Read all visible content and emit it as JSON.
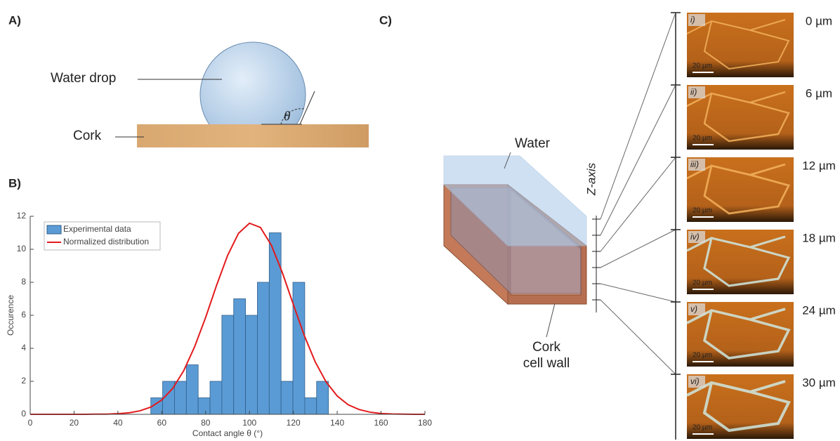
{
  "panel_a": {
    "label": "A)",
    "water_drop": "Water drop",
    "cork": "Cork",
    "theta": "θ"
  },
  "panel_c": {
    "label": "C)",
    "water": "Water",
    "cork_line1": "Cork",
    "cork_line2": "cell wall",
    "z_axis": "Z-axis",
    "images": [
      {
        "label": "i)",
        "depth": "0 µm",
        "scale": "20 µm"
      },
      {
        "label": "ii)",
        "depth": "6 µm",
        "scale": "20 µm"
      },
      {
        "label": "iii)",
        "depth": "12 µm",
        "scale": "20 µm"
      },
      {
        "label": "iv)",
        "depth": "18 µm",
        "scale": "20 µm"
      },
      {
        "label": "v)",
        "depth": "24 µm",
        "scale": "20 µm"
      },
      {
        "label": "vi)",
        "depth": "30 µm",
        "scale": "20 µm"
      }
    ]
  },
  "chart_data": {
    "type": "histogram",
    "label": "B)",
    "x_label": "Contact angle θ (°)",
    "y_label": "Occurence",
    "bins": [
      55,
      60.4,
      65.8,
      71.2,
      76.6,
      82,
      87.4,
      92.8,
      98.2,
      103.6,
      109,
      114.4,
      119.8,
      125.2,
      130.6,
      136
    ],
    "series": [
      {
        "name": "Experimental data",
        "type": "histogram",
        "color": "#5b9bd5",
        "values": [
          1,
          2,
          2,
          3,
          1,
          2,
          6,
          7,
          6,
          8,
          11,
          2,
          8,
          1,
          2
        ]
      },
      {
        "name": "Normalized distribution",
        "type": "line",
        "color": "#e31a1c",
        "x": [
          0,
          5,
          10,
          15,
          20,
          25,
          30,
          35,
          40,
          45,
          50,
          55,
          60,
          65,
          70,
          75,
          80,
          85,
          90,
          95,
          100,
          105,
          110,
          115,
          120,
          125,
          130,
          135,
          140,
          145,
          150,
          155,
          160,
          165,
          170,
          175,
          180
        ],
        "values": [
          0,
          0,
          0,
          0,
          0,
          0,
          0.01,
          0.01,
          0.04,
          0.09,
          0.21,
          0.44,
          0.87,
          1.57,
          2.64,
          4.1,
          5.87,
          7.82,
          9.62,
          10.97,
          11.58,
          11.32,
          10.24,
          8.58,
          6.65,
          4.77,
          3.17,
          1.95,
          1.11,
          0.58,
          0.29,
          0.13,
          0.05,
          0.02,
          0.01,
          0,
          0
        ]
      }
    ],
    "xlim": [
      0,
      180
    ],
    "ylim": [
      0,
      12
    ],
    "xticks": [
      0,
      20,
      40,
      60,
      80,
      100,
      120,
      140,
      160,
      180
    ],
    "yticks": [
      0,
      2,
      4,
      6,
      8,
      10,
      12
    ],
    "legend": "upper left"
  }
}
